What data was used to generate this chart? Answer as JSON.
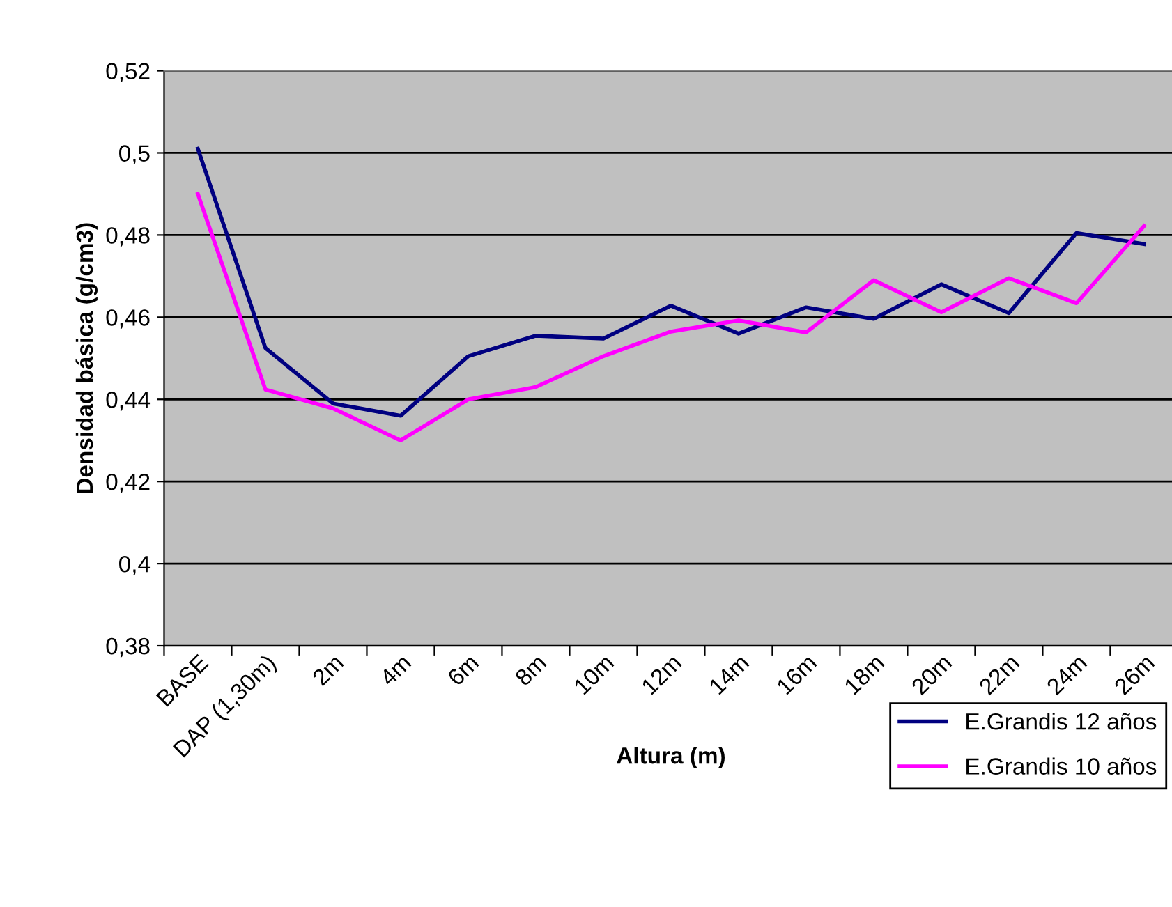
{
  "chart_data": {
    "type": "line",
    "xlabel": "Altura (m)",
    "ylabel": "Densidad básica (g/cm3)",
    "categories": [
      "BASE",
      "DAP (1,30m)",
      "2m",
      "4m",
      "6m",
      "8m",
      "10m",
      "12m",
      "14m",
      "16m",
      "18m",
      "20m",
      "22m",
      "24m",
      "26m"
    ],
    "series": [
      {
        "name": "E.Grandis 12 años",
        "color": "#000080",
        "values": [
          0.501,
          0.4525,
          0.439,
          0.436,
          0.4505,
          0.4555,
          0.4548,
          0.4628,
          0.456,
          0.4624,
          0.4596,
          0.468,
          0.461,
          0.4805,
          0.4778
        ]
      },
      {
        "name": "E.Grandis 10 años",
        "color": "#ff00ff",
        "values": [
          0.49,
          0.4424,
          0.4378,
          0.43,
          0.44,
          0.443,
          0.4505,
          0.4565,
          0.4592,
          0.4563,
          0.469,
          0.4612,
          0.4695,
          0.4634,
          0.4822
        ]
      }
    ],
    "ylim": [
      0.38,
      0.52
    ],
    "yticks": [
      {
        "value": 0.38,
        "label": "0,38"
      },
      {
        "value": 0.4,
        "label": "0,4"
      },
      {
        "value": 0.42,
        "label": "0,42"
      },
      {
        "value": 0.44,
        "label": "0,44"
      },
      {
        "value": 0.46,
        "label": "0,46"
      },
      {
        "value": 0.48,
        "label": "0,48"
      },
      {
        "value": 0.5,
        "label": "0,5"
      },
      {
        "value": 0.52,
        "label": "0,52"
      }
    ],
    "grid": "y",
    "legend": "bottom right",
    "marker": "none",
    "line_style": "solid"
  }
}
